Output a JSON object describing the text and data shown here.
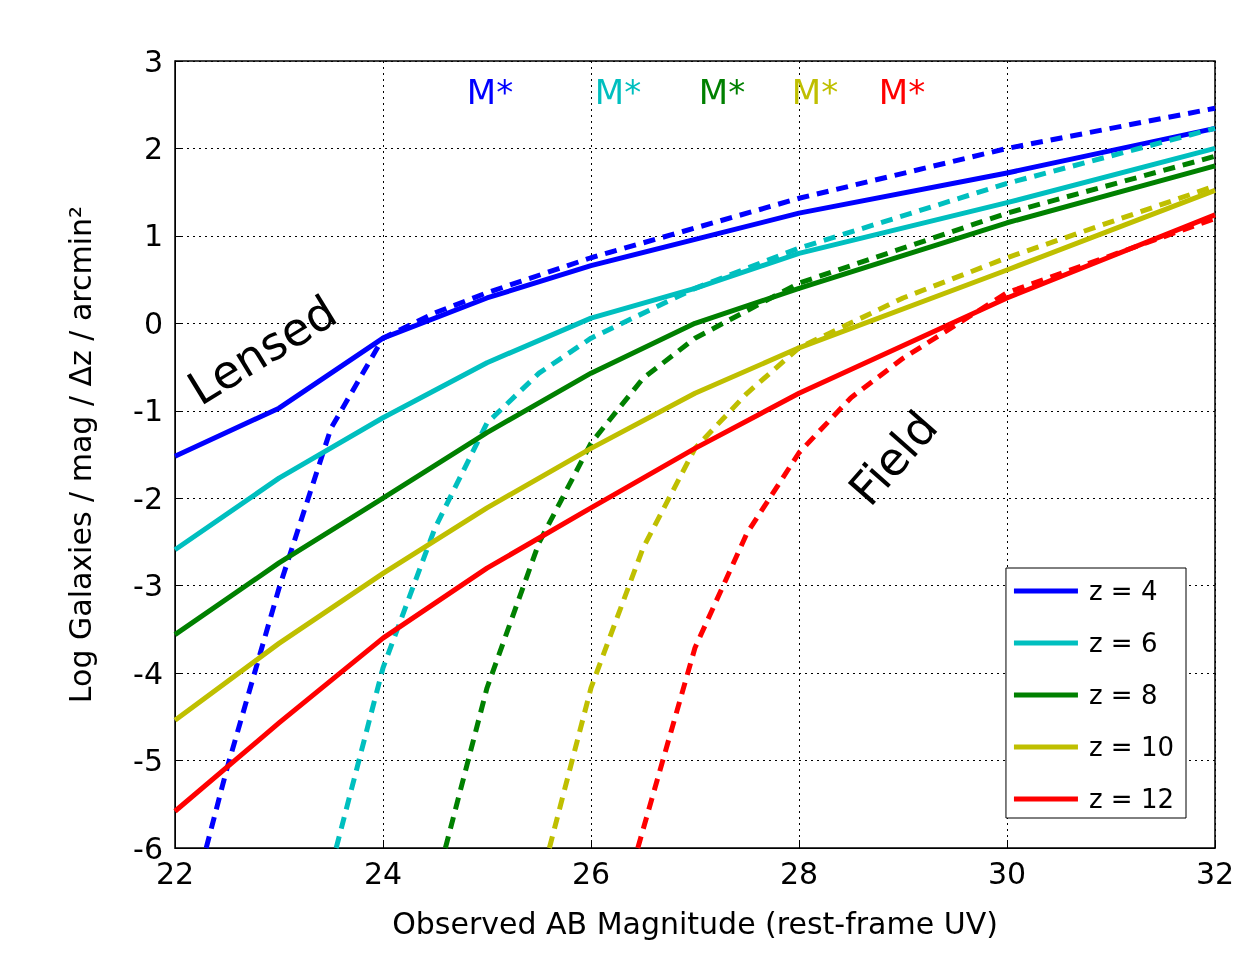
{
  "chart_data": {
    "type": "line",
    "xlabel": "Observed AB Magnitude (rest-frame UV)",
    "ylabel": "Log Galaxies / mag / Δz / arcmin²",
    "xlim": [
      22,
      32
    ],
    "ylim": [
      -6,
      3
    ],
    "xticks": [
      22,
      24,
      26,
      28,
      30,
      32
    ],
    "yticks": [
      -6,
      -5,
      -4,
      -3,
      -2,
      -1,
      0,
      1,
      2,
      3
    ],
    "grid": true,
    "legend": "bottom right",
    "marker": "none",
    "series": [
      {
        "name": "z = 4",
        "color": "#0000ff",
        "line_style": "solid",
        "x": [
          22,
          23,
          24,
          25,
          26,
          28,
          30,
          32
        ],
        "values": [
          -1.52,
          -0.97,
          -0.17,
          0.29,
          0.66,
          1.26,
          1.72,
          2.23
        ]
      },
      {
        "color": "#0000ff",
        "line_style": "dashed",
        "x": [
          22.3,
          22.5,
          23,
          23.5,
          24,
          24.5,
          25,
          26,
          28,
          30,
          32
        ],
        "values": [
          -6,
          -5.09,
          -3.03,
          -1.2,
          -0.17,
          0.12,
          0.35,
          0.75,
          1.43,
          2.0,
          2.46
        ]
      },
      {
        "name": "z = 6",
        "color": "#00bfbf",
        "line_style": "solid",
        "x": [
          22,
          23,
          24,
          25,
          26,
          27,
          28,
          30,
          32
        ],
        "values": [
          -2.59,
          -1.77,
          -1.08,
          -0.45,
          0.06,
          0.4,
          0.8,
          1.38,
          2.0
        ]
      },
      {
        "color": "#00bfbf",
        "line_style": "dashed",
        "x": [
          23.55,
          24,
          24.5,
          25,
          25.5,
          26,
          27,
          28,
          30,
          32
        ],
        "values": [
          -6,
          -3.94,
          -2.34,
          -1.14,
          -0.57,
          -0.17,
          0.4,
          0.86,
          1.6,
          2.23
        ]
      },
      {
        "name": "z = 8",
        "color": "#008000",
        "line_style": "solid",
        "x": [
          22,
          23,
          24,
          25,
          26,
          27,
          28,
          30,
          32
        ],
        "values": [
          -3.56,
          -2.74,
          -2.0,
          -1.25,
          -0.57,
          0.0,
          0.4,
          1.15,
          1.8
        ]
      },
      {
        "color": "#008000",
        "line_style": "dashed",
        "x": [
          24.6,
          25,
          25.5,
          26,
          26.5,
          27,
          28,
          30,
          32
        ],
        "values": [
          -6,
          -4.17,
          -2.51,
          -1.37,
          -0.63,
          -0.17,
          0.46,
          1.26,
          1.91
        ]
      },
      {
        "name": "z = 10",
        "color": "#bfbf00",
        "line_style": "solid",
        "x": [
          22,
          23,
          24,
          25,
          26,
          27,
          28,
          30,
          32
        ],
        "values": [
          -4.54,
          -3.66,
          -2.86,
          -2.11,
          -1.43,
          -0.8,
          -0.28,
          0.61,
          1.52
        ]
      },
      {
        "color": "#bfbf00",
        "line_style": "dashed",
        "x": [
          25.6,
          26,
          26.5,
          27,
          27.5,
          28,
          29,
          30,
          32
        ],
        "values": [
          -6,
          -4.17,
          -2.57,
          -1.43,
          -0.8,
          -0.28,
          0.29,
          0.75,
          1.57
        ]
      },
      {
        "name": "z = 12",
        "color": "#ff0000",
        "line_style": "solid",
        "x": [
          22,
          23,
          24,
          25,
          26,
          27,
          28,
          30,
          32
        ],
        "values": [
          -5.58,
          -4.57,
          -3.6,
          -2.8,
          -2.11,
          -1.43,
          -0.8,
          0.29,
          1.24
        ]
      },
      {
        "color": "#ff0000",
        "line_style": "dashed",
        "x": [
          26.45,
          27,
          27.5,
          28,
          28.5,
          29,
          30,
          32
        ],
        "values": [
          -6,
          -3.71,
          -2.4,
          -1.48,
          -0.85,
          -0.4,
          0.35,
          1.2
        ]
      }
    ],
    "annotations": [
      "M*",
      "M*",
      "M*",
      "M*",
      "M*",
      "Lensed",
      "Field"
    ]
  }
}
